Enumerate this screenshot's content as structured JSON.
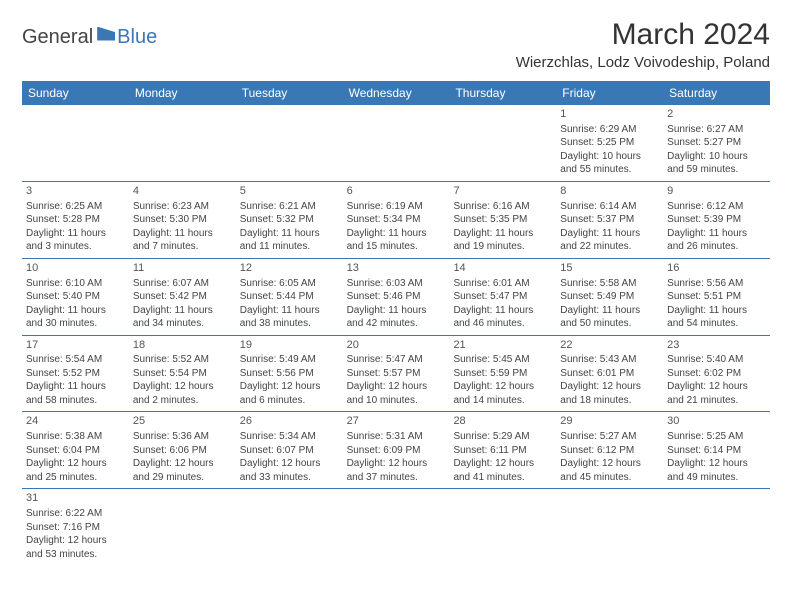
{
  "logo": {
    "general": "General",
    "blue": "Blue"
  },
  "title": "March 2024",
  "location": "Wierzchlas, Lodz Voivodeship, Poland",
  "colors": {
    "header_bg": "#3a78b5",
    "header_text": "#ffffff",
    "text": "#444444",
    "border": "#3a78b5"
  },
  "day_headers": [
    "Sunday",
    "Monday",
    "Tuesday",
    "Wednesday",
    "Thursday",
    "Friday",
    "Saturday"
  ],
  "weeks": [
    [
      {
        "n": "",
        "sr": "",
        "ss": "",
        "dl": ""
      },
      {
        "n": "",
        "sr": "",
        "ss": "",
        "dl": ""
      },
      {
        "n": "",
        "sr": "",
        "ss": "",
        "dl": ""
      },
      {
        "n": "",
        "sr": "",
        "ss": "",
        "dl": ""
      },
      {
        "n": "",
        "sr": "",
        "ss": "",
        "dl": ""
      },
      {
        "n": "1",
        "sr": "Sunrise: 6:29 AM",
        "ss": "Sunset: 5:25 PM",
        "dl": "Daylight: 10 hours and 55 minutes."
      },
      {
        "n": "2",
        "sr": "Sunrise: 6:27 AM",
        "ss": "Sunset: 5:27 PM",
        "dl": "Daylight: 10 hours and 59 minutes."
      }
    ],
    [
      {
        "n": "3",
        "sr": "Sunrise: 6:25 AM",
        "ss": "Sunset: 5:28 PM",
        "dl": "Daylight: 11 hours and 3 minutes."
      },
      {
        "n": "4",
        "sr": "Sunrise: 6:23 AM",
        "ss": "Sunset: 5:30 PM",
        "dl": "Daylight: 11 hours and 7 minutes."
      },
      {
        "n": "5",
        "sr": "Sunrise: 6:21 AM",
        "ss": "Sunset: 5:32 PM",
        "dl": "Daylight: 11 hours and 11 minutes."
      },
      {
        "n": "6",
        "sr": "Sunrise: 6:19 AM",
        "ss": "Sunset: 5:34 PM",
        "dl": "Daylight: 11 hours and 15 minutes."
      },
      {
        "n": "7",
        "sr": "Sunrise: 6:16 AM",
        "ss": "Sunset: 5:35 PM",
        "dl": "Daylight: 11 hours and 19 minutes."
      },
      {
        "n": "8",
        "sr": "Sunrise: 6:14 AM",
        "ss": "Sunset: 5:37 PM",
        "dl": "Daylight: 11 hours and 22 minutes."
      },
      {
        "n": "9",
        "sr": "Sunrise: 6:12 AM",
        "ss": "Sunset: 5:39 PM",
        "dl": "Daylight: 11 hours and 26 minutes."
      }
    ],
    [
      {
        "n": "10",
        "sr": "Sunrise: 6:10 AM",
        "ss": "Sunset: 5:40 PM",
        "dl": "Daylight: 11 hours and 30 minutes."
      },
      {
        "n": "11",
        "sr": "Sunrise: 6:07 AM",
        "ss": "Sunset: 5:42 PM",
        "dl": "Daylight: 11 hours and 34 minutes."
      },
      {
        "n": "12",
        "sr": "Sunrise: 6:05 AM",
        "ss": "Sunset: 5:44 PM",
        "dl": "Daylight: 11 hours and 38 minutes."
      },
      {
        "n": "13",
        "sr": "Sunrise: 6:03 AM",
        "ss": "Sunset: 5:46 PM",
        "dl": "Daylight: 11 hours and 42 minutes."
      },
      {
        "n": "14",
        "sr": "Sunrise: 6:01 AM",
        "ss": "Sunset: 5:47 PM",
        "dl": "Daylight: 11 hours and 46 minutes."
      },
      {
        "n": "15",
        "sr": "Sunrise: 5:58 AM",
        "ss": "Sunset: 5:49 PM",
        "dl": "Daylight: 11 hours and 50 minutes."
      },
      {
        "n": "16",
        "sr": "Sunrise: 5:56 AM",
        "ss": "Sunset: 5:51 PM",
        "dl": "Daylight: 11 hours and 54 minutes."
      }
    ],
    [
      {
        "n": "17",
        "sr": "Sunrise: 5:54 AM",
        "ss": "Sunset: 5:52 PM",
        "dl": "Daylight: 11 hours and 58 minutes."
      },
      {
        "n": "18",
        "sr": "Sunrise: 5:52 AM",
        "ss": "Sunset: 5:54 PM",
        "dl": "Daylight: 12 hours and 2 minutes."
      },
      {
        "n": "19",
        "sr": "Sunrise: 5:49 AM",
        "ss": "Sunset: 5:56 PM",
        "dl": "Daylight: 12 hours and 6 minutes."
      },
      {
        "n": "20",
        "sr": "Sunrise: 5:47 AM",
        "ss": "Sunset: 5:57 PM",
        "dl": "Daylight: 12 hours and 10 minutes."
      },
      {
        "n": "21",
        "sr": "Sunrise: 5:45 AM",
        "ss": "Sunset: 5:59 PM",
        "dl": "Daylight: 12 hours and 14 minutes."
      },
      {
        "n": "22",
        "sr": "Sunrise: 5:43 AM",
        "ss": "Sunset: 6:01 PM",
        "dl": "Daylight: 12 hours and 18 minutes."
      },
      {
        "n": "23",
        "sr": "Sunrise: 5:40 AM",
        "ss": "Sunset: 6:02 PM",
        "dl": "Daylight: 12 hours and 21 minutes."
      }
    ],
    [
      {
        "n": "24",
        "sr": "Sunrise: 5:38 AM",
        "ss": "Sunset: 6:04 PM",
        "dl": "Daylight: 12 hours and 25 minutes."
      },
      {
        "n": "25",
        "sr": "Sunrise: 5:36 AM",
        "ss": "Sunset: 6:06 PM",
        "dl": "Daylight: 12 hours and 29 minutes."
      },
      {
        "n": "26",
        "sr": "Sunrise: 5:34 AM",
        "ss": "Sunset: 6:07 PM",
        "dl": "Daylight: 12 hours and 33 minutes."
      },
      {
        "n": "27",
        "sr": "Sunrise: 5:31 AM",
        "ss": "Sunset: 6:09 PM",
        "dl": "Daylight: 12 hours and 37 minutes."
      },
      {
        "n": "28",
        "sr": "Sunrise: 5:29 AM",
        "ss": "Sunset: 6:11 PM",
        "dl": "Daylight: 12 hours and 41 minutes."
      },
      {
        "n": "29",
        "sr": "Sunrise: 5:27 AM",
        "ss": "Sunset: 6:12 PM",
        "dl": "Daylight: 12 hours and 45 minutes."
      },
      {
        "n": "30",
        "sr": "Sunrise: 5:25 AM",
        "ss": "Sunset: 6:14 PM",
        "dl": "Daylight: 12 hours and 49 minutes."
      }
    ],
    [
      {
        "n": "31",
        "sr": "Sunrise: 6:22 AM",
        "ss": "Sunset: 7:16 PM",
        "dl": "Daylight: 12 hours and 53 minutes."
      },
      {
        "n": "",
        "sr": "",
        "ss": "",
        "dl": ""
      },
      {
        "n": "",
        "sr": "",
        "ss": "",
        "dl": ""
      },
      {
        "n": "",
        "sr": "",
        "ss": "",
        "dl": ""
      },
      {
        "n": "",
        "sr": "",
        "ss": "",
        "dl": ""
      },
      {
        "n": "",
        "sr": "",
        "ss": "",
        "dl": ""
      },
      {
        "n": "",
        "sr": "",
        "ss": "",
        "dl": ""
      }
    ]
  ]
}
